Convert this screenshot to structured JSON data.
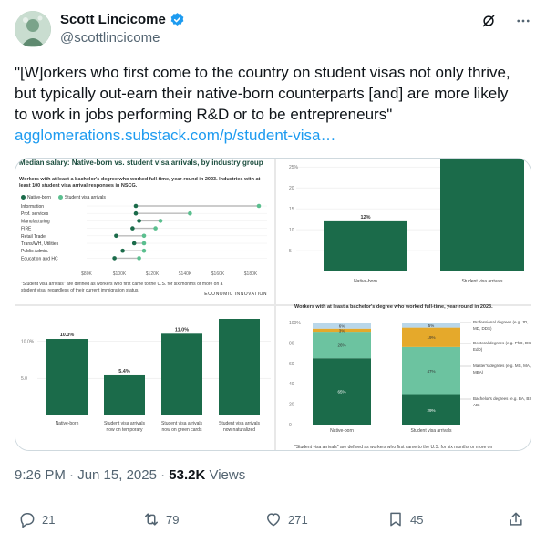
{
  "author": {
    "name": "Scott Lincicome",
    "handle": "@scottlincicome"
  },
  "tweet": {
    "text": "\"[W]orkers who first come to the country on student visas not only thrive, but typically out-earn their native-born counterparts [and] are more likely to work in jobs performing R&D or to be entrepreneurs\"",
    "link": "agglomerations.substack.com/p/student-visa…"
  },
  "panel1": {
    "title": "Median salary: Native-born vs. student visa arrivals, by industry group",
    "subtitle": "Workers with at least a bachelor's degree who worked full-time, year-round in 2023. Industries with at least 100 student visa arrival responses in NSCG.",
    "legend": [
      "Native-born",
      "Student visa arrivals"
    ],
    "note": "\"Student visa arrivals\" are defined as workers who first came to the U.S. for six months or more on a student visa, regardless of their current immigration status.",
    "logo": "ECONOMIC INNOVATION",
    "chart_data": {
      "type": "scatter",
      "title": "Median salary: Native-born vs. student visa arrivals, by industry group",
      "categories": [
        "Information",
        "Prof. services",
        "Manufacturing",
        "FIRE",
        "Retail Trade",
        "Trans/WH, Utilities",
        "Public Admin.",
        "Education and HC"
      ],
      "series": [
        {
          "name": "Native-born",
          "values": [
            110000,
            110000,
            112000,
            108000,
            98000,
            109000,
            102000,
            97000
          ]
        },
        {
          "name": "Student visa arrivals",
          "values": [
            185000,
            143000,
            125000,
            122000,
            115000,
            115000,
            115000,
            112000
          ]
        }
      ],
      "xticks": [
        "$80K",
        "$100K",
        "$120K",
        "$140K",
        "$160K",
        "$180K"
      ],
      "xlim": [
        80000,
        190000
      ]
    }
  },
  "panel2": {
    "chart_data": {
      "type": "bar",
      "categories": [
        "Native-born",
        "Student visa arrivals"
      ],
      "values": [
        12,
        27
      ],
      "labels": [
        "12%",
        "27%"
      ],
      "yticks": [
        "5",
        "10",
        "15",
        "20",
        "25%"
      ],
      "ylim": [
        0,
        27
      ]
    }
  },
  "panel3": {
    "chart_data": {
      "type": "bar",
      "categories": [
        "Native-born",
        "Student visa arrivals now on temporary",
        "Student visa arrivals now on green cards",
        "Student visa arrivals now naturalized"
      ],
      "category_lines": [
        [
          "Native-born"
        ],
        [
          "Student visa arrivals",
          "now on temporary"
        ],
        [
          "Student visa arrivals",
          "now on green cards"
        ],
        [
          "Student visa arrivals",
          "now naturalized"
        ]
      ],
      "values": [
        10.3,
        5.4,
        11.0,
        13.0
      ],
      "labels": [
        "10.3%",
        "5.4%",
        "11.0%",
        ""
      ],
      "yticks": [
        "5.0",
        "10.0%"
      ],
      "ylim": [
        0,
        13
      ]
    }
  },
  "panel4": {
    "title": "Workers with at least a bachelor's degree who worked full-time, year-round in 2023.",
    "footnote": "\"Student visa arrivals\" are defined as workers who first came to the U.S. for six months or more on",
    "chart_data": {
      "type": "bar",
      "stacked": true,
      "categories": [
        "Native-born",
        "Student visa arrivals"
      ],
      "series": [
        {
          "name": "Bachelor's degrees (e.g. BA, BS, AB)",
          "values": [
            65,
            29
          ],
          "color": "#1b6b4a"
        },
        {
          "name": "Master's degrees (e.g. MS, MA, MBA)",
          "values": [
            26,
            47
          ],
          "color": "#6cc3a0"
        },
        {
          "name": "Doctoral degrees (e.g. PhD, DSc, EdD)",
          "values": [
            3,
            19
          ],
          "color": "#e5a92b"
        },
        {
          "name": "Professional degrees (e.g. JD, MD, DDS)",
          "values": [
            6,
            5
          ],
          "color": "#b9d7ea"
        }
      ],
      "labels": [
        [
          "65%",
          "26%",
          "3%",
          "6%"
        ],
        [
          "29%",
          "47%",
          "19%",
          "5%"
        ]
      ],
      "legend_lines": [
        [
          "Professional degrees (e.g. JD,",
          "MD, DDS)"
        ],
        [
          "Doctoral degrees (e.g. PhD, DSc,",
          "EdD)"
        ],
        [
          "Master's degrees (e.g. MS, MA,",
          "MBA)"
        ],
        [
          "Bachelor's degrees (e.g. BA, BS,",
          "AB)"
        ]
      ],
      "yticks": [
        "0",
        "20",
        "40",
        "60",
        "80",
        "100%"
      ],
      "ylim": [
        0,
        100
      ]
    }
  },
  "meta": {
    "time": "9:26 PM · Jun 15, 2025 · ",
    "views": "53.2K",
    "views_label": " Views"
  },
  "actions": {
    "replies": "21",
    "reposts": "79",
    "likes": "271",
    "bookmarks": "45"
  },
  "colors": {
    "dark_green": "#1b6b4a",
    "light_green": "#5bbf8f",
    "link": "#1d9bf0",
    "verified": "#1d9bf0"
  }
}
